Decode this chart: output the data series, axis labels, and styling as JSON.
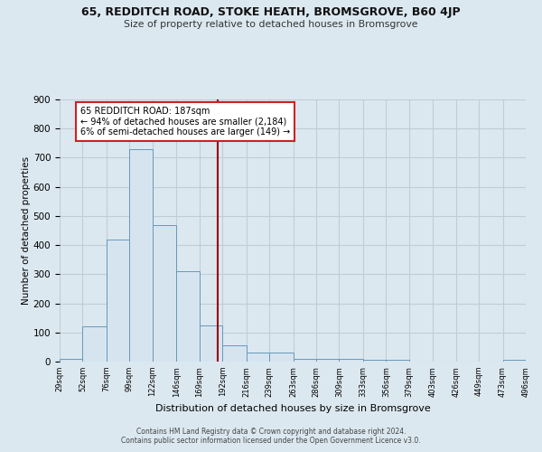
{
  "title1": "65, REDDITCH ROAD, STOKE HEATH, BROMSGROVE, B60 4JP",
  "title2": "Size of property relative to detached houses in Bromsgrove",
  "xlabel": "Distribution of detached houses by size in Bromsgrove",
  "ylabel": "Number of detached properties",
  "bin_edges": [
    29,
    52,
    76,
    99,
    122,
    146,
    169,
    192,
    216,
    239,
    263,
    286,
    309,
    333,
    356,
    379,
    403,
    426,
    449,
    473,
    496
  ],
  "bin_counts": [
    10,
    120,
    420,
    730,
    470,
    310,
    125,
    55,
    30,
    30,
    10,
    10,
    10,
    5,
    5,
    0,
    0,
    0,
    0,
    5
  ],
  "bar_color": "#d6e4f0",
  "bar_edge_color": "#6699bb",
  "property_size": 187,
  "vline_color": "#990000",
  "annotation_line1": "65 REDDITCH ROAD: 187sqm",
  "annotation_line2": "← 94% of detached houses are smaller (2,184)",
  "annotation_line3": "6% of semi-detached houses are larger (149) →",
  "annotation_box_edge": "#cc2222",
  "footer1": "Contains HM Land Registry data © Crown copyright and database right 2024.",
  "footer2": "Contains public sector information licensed under the Open Government Licence v3.0.",
  "ylim": [
    0,
    900
  ],
  "background_color": "#dce8f0",
  "plot_bg_color": "#dce8f0",
  "grid_color": "#c0cdd8"
}
